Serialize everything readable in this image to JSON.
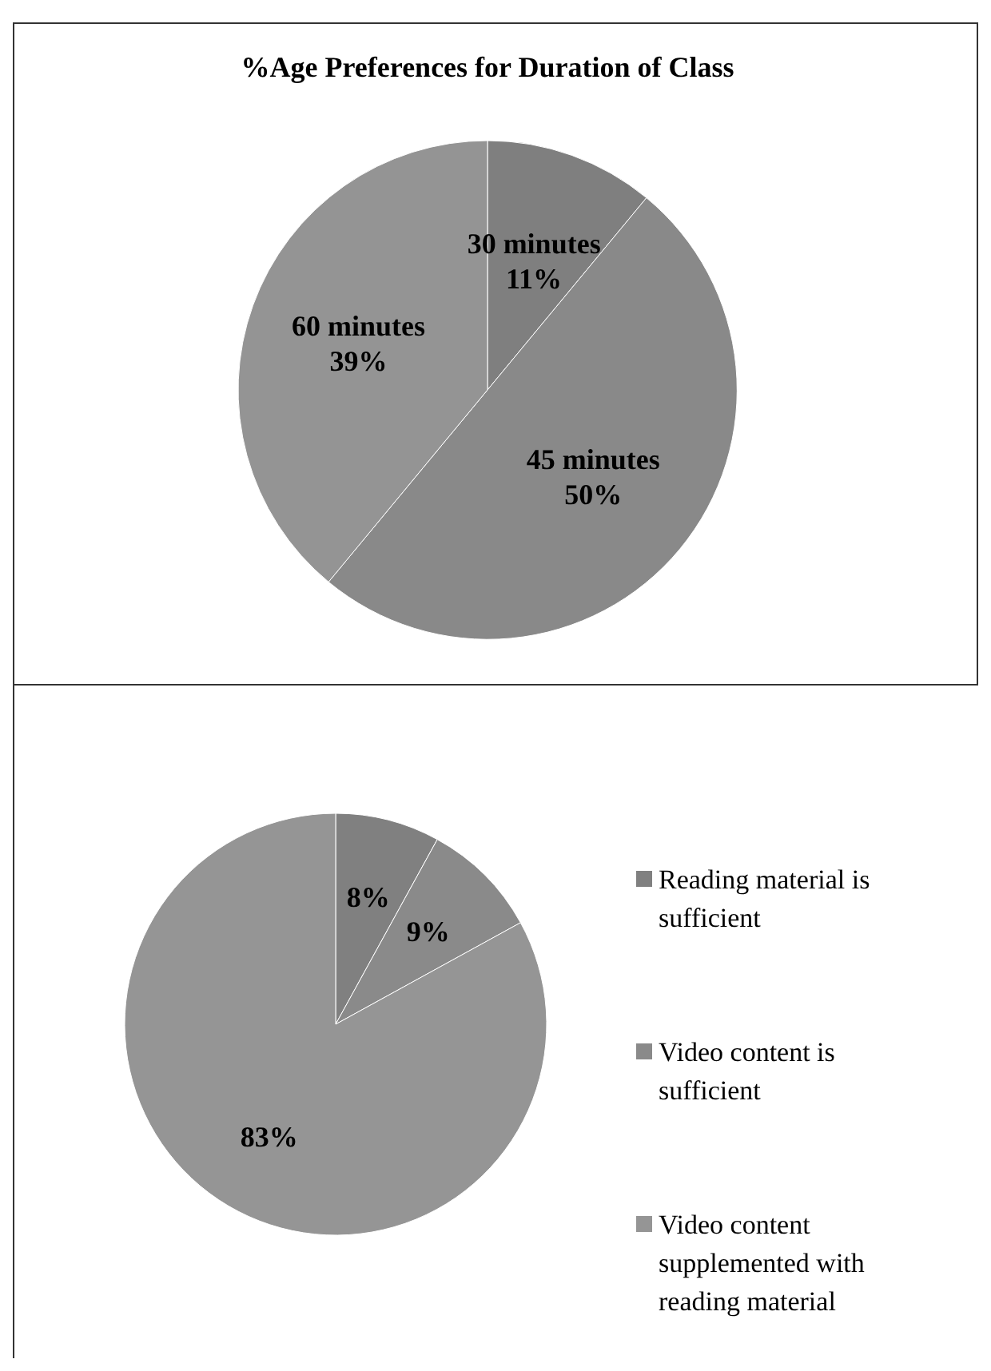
{
  "chart_data": [
    {
      "type": "pie",
      "title": "%Age Preferences for Duration of Class",
      "categories": [
        "30 minutes",
        "45 minutes",
        "60 minutes"
      ],
      "values": [
        11,
        50,
        39
      ],
      "value_labels": [
        "11%",
        "50%",
        "39%"
      ],
      "colors": [
        "#7f7f7f",
        "#898989",
        "#949494"
      ],
      "legend": false
    },
    {
      "type": "pie",
      "categories": [
        "Reading material is sufficient",
        "Video content is sufficient",
        "Video content supplemented with reading material"
      ],
      "values": [
        8,
        9,
        83
      ],
      "value_labels": [
        "8%",
        "9%",
        "83%"
      ],
      "colors": [
        "#808080",
        "#8a8a8a",
        "#959595"
      ],
      "legend": "right"
    }
  ]
}
